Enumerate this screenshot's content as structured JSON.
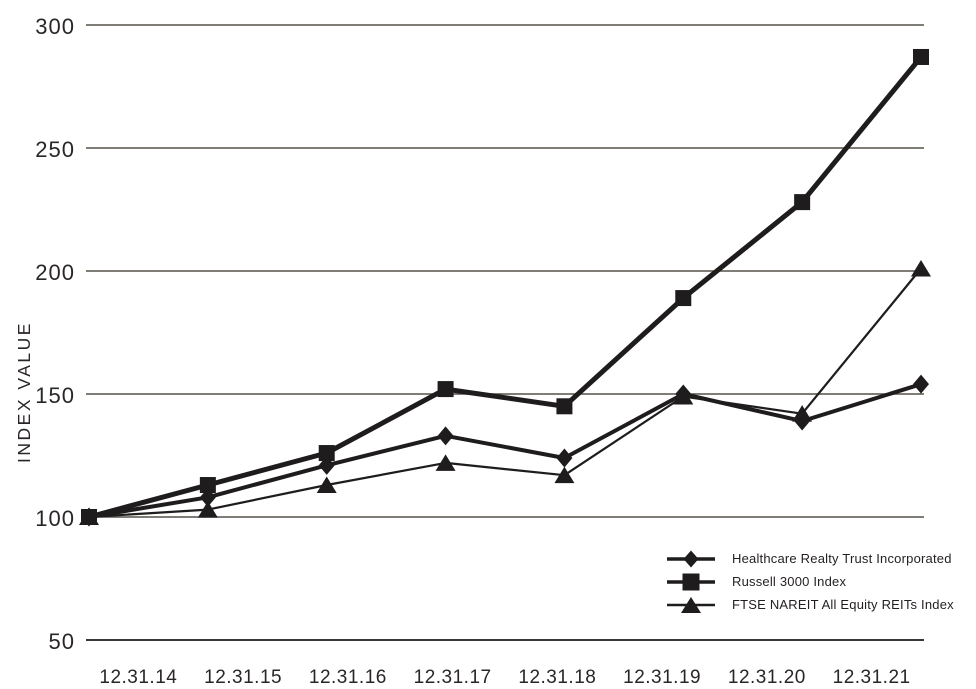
{
  "chart_data": {
    "type": "line",
    "title": "",
    "xlabel": "",
    "ylabel": "INDEX VALUE",
    "categories": [
      "12.31.14",
      "12.31.15",
      "12.31.16",
      "12.31.17",
      "12.31.18",
      "12.31.19",
      "12.31.20",
      "12.31.21"
    ],
    "series": [
      {
        "name": "Healthcare Realty Trust Incorporated",
        "marker": "diamond",
        "values": [
          100,
          108,
          121,
          133,
          124,
          150,
          139,
          154
        ]
      },
      {
        "name": "Russell 3000 Index",
        "marker": "square",
        "values": [
          100,
          113,
          126,
          152,
          145,
          189,
          228,
          287
        ]
      },
      {
        "name": "FTSE NAREIT All Equity REITs Index",
        "marker": "triangle",
        "values": [
          100,
          103,
          113,
          122,
          117,
          149,
          142,
          201
        ]
      }
    ],
    "y_ticks": [
      300,
      250,
      200,
      150,
      100,
      50
    ],
    "ylim": [
      50,
      300
    ],
    "grid": "horizontal-only",
    "legend_position": "inside-bottom-right",
    "colors": {
      "line": "#1f1c1d",
      "grid": "#56524d",
      "axis": "#3a3734",
      "text": "#2a2627"
    }
  }
}
